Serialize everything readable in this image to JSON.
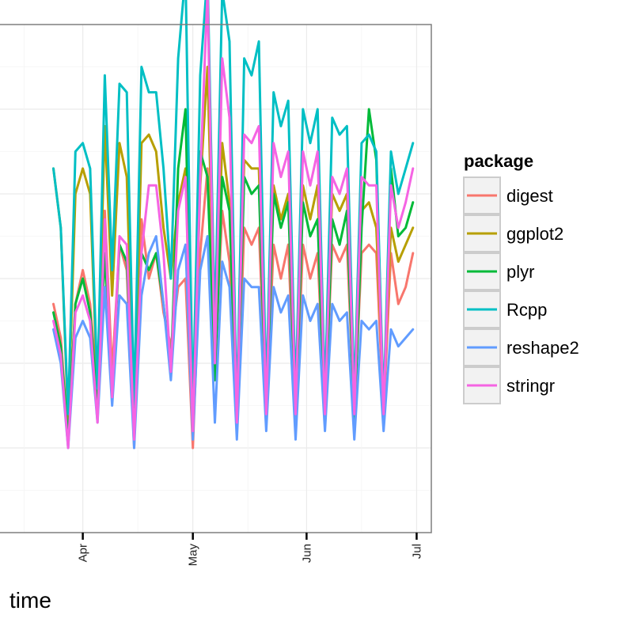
{
  "chart_data": {
    "type": "line",
    "xlabel": "time",
    "ylabel": "",
    "x_ticks": [
      "Apr",
      "May",
      "Jun",
      "Jul"
    ],
    "x_range": [
      "2014-03-09",
      "2014-07-05"
    ],
    "y_range": [
      0,
      6
    ],
    "grid": true,
    "legend_title": "package",
    "legend_position": "right",
    "x": [
      "2014-03-24",
      "2014-03-26",
      "2014-03-28",
      "2014-03-30",
      "2014-04-01",
      "2014-04-03",
      "2014-04-05",
      "2014-04-07",
      "2014-04-09",
      "2014-04-11",
      "2014-04-13",
      "2014-04-15",
      "2014-04-17",
      "2014-04-19",
      "2014-04-21",
      "2014-04-23",
      "2014-04-25",
      "2014-04-27",
      "2014-04-29",
      "2014-05-01",
      "2014-05-03",
      "2014-05-05",
      "2014-05-07",
      "2014-05-09",
      "2014-05-11",
      "2014-05-13",
      "2014-05-15",
      "2014-05-17",
      "2014-05-19",
      "2014-05-21",
      "2014-05-23",
      "2014-05-25",
      "2014-05-27",
      "2014-05-29",
      "2014-05-31",
      "2014-06-02",
      "2014-06-04",
      "2014-06-06",
      "2014-06-08",
      "2014-06-10",
      "2014-06-12",
      "2014-06-14",
      "2014-06-16",
      "2014-06-18",
      "2014-06-20",
      "2014-06-22",
      "2014-06-24",
      "2014-06-26",
      "2014-06-28",
      "2014-06-30"
    ],
    "series": [
      {
        "name": "digest",
        "color": "#F8766D",
        "values": [
          2.7,
          2.3,
          1.1,
          2.7,
          3.1,
          2.7,
          1.6,
          3.8,
          1.9,
          3.4,
          3.1,
          1.0,
          3.7,
          3.0,
          3.3,
          2.6,
          2.2,
          2.9,
          3.0,
          1.0,
          3.3,
          4.3,
          1.9,
          3.8,
          3.2,
          1.2,
          3.6,
          3.4,
          3.6,
          1.4,
          3.4,
          3.0,
          3.4,
          1.3,
          3.4,
          3.0,
          3.3,
          1.4,
          3.4,
          3.2,
          3.4,
          1.4,
          3.3,
          3.4,
          3.3,
          1.4,
          3.3,
          2.7,
          2.9,
          3.3
        ]
      },
      {
        "name": "ggplot2",
        "color": "#B79F00",
        "values": [
          4.3,
          3.6,
          1.3,
          4.0,
          4.3,
          4.0,
          1.6,
          4.8,
          2.8,
          4.6,
          4.2,
          1.3,
          4.6,
          4.7,
          4.5,
          3.6,
          3.0,
          3.9,
          4.3,
          1.2,
          4.1,
          5.5,
          2.1,
          4.6,
          3.9,
          1.3,
          4.4,
          4.3,
          4.3,
          1.6,
          4.1,
          3.7,
          4.0,
          1.4,
          4.1,
          3.7,
          4.1,
          1.6,
          4.0,
          3.8,
          4.0,
          1.6,
          3.8,
          3.9,
          3.6,
          1.6,
          3.6,
          3.2,
          3.4,
          3.6
        ]
      },
      {
        "name": "plyr",
        "color": "#00BA38",
        "values": [
          2.6,
          2.2,
          1.1,
          2.7,
          3.0,
          2.6,
          1.5,
          3.3,
          1.6,
          3.4,
          3.2,
          1.3,
          3.3,
          3.1,
          3.3,
          2.7,
          1.9,
          4.3,
          5.0,
          1.2,
          4.5,
          4.2,
          1.8,
          4.2,
          3.8,
          1.3,
          4.2,
          4.0,
          4.1,
          1.4,
          4.0,
          3.6,
          3.9,
          1.4,
          3.9,
          3.5,
          3.7,
          1.3,
          3.7,
          3.4,
          3.8,
          1.3,
          3.6,
          5.0,
          4.4,
          1.4,
          4.3,
          3.5,
          3.6,
          3.9
        ]
      },
      {
        "name": "Rcpp",
        "color": "#00BFC4",
        "values": [
          4.3,
          3.6,
          1.4,
          4.5,
          4.6,
          4.3,
          1.7,
          5.4,
          3.1,
          5.3,
          5.2,
          1.5,
          5.5,
          5.2,
          5.2,
          4.3,
          3.0,
          5.6,
          6.6,
          1.4,
          5.4,
          6.6,
          2.4,
          6.4,
          5.8,
          1.4,
          5.6,
          5.4,
          5.8,
          1.6,
          5.2,
          4.8,
          5.1,
          1.6,
          5.0,
          4.6,
          5.0,
          1.6,
          4.9,
          4.7,
          4.8,
          1.6,
          4.6,
          4.7,
          4.5,
          1.5,
          4.5,
          4.0,
          4.3,
          4.6
        ]
      },
      {
        "name": "reshape2",
        "color": "#619CFF",
        "values": [
          2.4,
          2.0,
          1.0,
          2.3,
          2.5,
          2.3,
          1.3,
          2.9,
          1.5,
          2.8,
          2.7,
          1.0,
          2.8,
          3.3,
          3.5,
          2.7,
          1.8,
          3.1,
          3.4,
          1.1,
          3.1,
          3.5,
          1.3,
          3.2,
          2.9,
          1.1,
          3.0,
          2.9,
          2.9,
          1.2,
          2.9,
          2.6,
          2.8,
          1.1,
          2.8,
          2.5,
          2.7,
          1.2,
          2.7,
          2.5,
          2.6,
          1.1,
          2.5,
          2.4,
          2.5,
          1.2,
          2.4,
          2.2,
          2.3,
          2.4
        ]
      },
      {
        "name": "stringr",
        "color": "#F564E3",
        "values": [
          2.5,
          2.1,
          1.0,
          2.6,
          2.8,
          2.5,
          1.3,
          3.7,
          1.6,
          3.5,
          3.4,
          1.1,
          3.3,
          4.1,
          4.1,
          3.3,
          1.9,
          3.8,
          4.2,
          1.2,
          4.2,
          6.4,
          2.0,
          5.6,
          4.9,
          1.3,
          4.7,
          4.6,
          4.8,
          1.4,
          4.6,
          4.2,
          4.5,
          1.4,
          4.5,
          4.1,
          4.5,
          1.4,
          4.2,
          4.0,
          4.3,
          1.4,
          4.2,
          4.1,
          4.1,
          1.4,
          4.1,
          3.6,
          3.9,
          4.3
        ]
      }
    ]
  }
}
